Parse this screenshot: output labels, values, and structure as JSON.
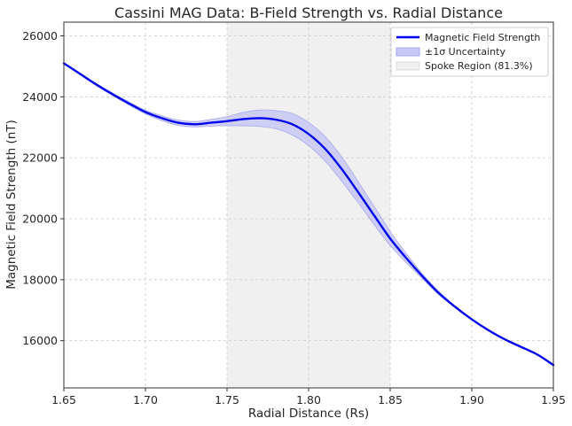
{
  "chart_data": {
    "type": "line",
    "title": "Cassini MAG Data: B-Field Strength vs. Radial Distance",
    "xlabel": "Radial Distance (Rs)",
    "ylabel": "Magnetic Field Strength (nT)",
    "xlim": [
      1.65,
      1.95
    ],
    "ylim": [
      14450,
      26450
    ],
    "x_ticks": [
      1.65,
      1.7,
      1.75,
      1.8,
      1.85,
      1.9,
      1.95
    ],
    "x_tick_labels": [
      "1.65",
      "1.70",
      "1.75",
      "1.80",
      "1.85",
      "1.90",
      "1.95"
    ],
    "y_ticks": [
      16000,
      18000,
      20000,
      22000,
      24000,
      26000
    ],
    "y_tick_labels": [
      "16000",
      "18000",
      "20000",
      "22000",
      "24000",
      "26000"
    ],
    "grid": true,
    "legend_position": "top-right",
    "legend": [
      {
        "label": "Magnetic Field Strength",
        "kind": "line"
      },
      {
        "label": "±1σ Uncertainty",
        "kind": "band"
      },
      {
        "label": "Spoke Region (81.3%)",
        "kind": "region"
      }
    ],
    "spoke_region": {
      "x_start": 1.75,
      "x_end": 1.85,
      "color": "#f0f0f0"
    },
    "colors": {
      "line": "#0000ee",
      "band_fill": "#c8c8f5",
      "band_edge": "#a8a8f0",
      "region": "#f0f0f0"
    },
    "series": [
      {
        "name": "Magnetic Field Strength",
        "x": [
          1.65,
          1.66,
          1.67,
          1.68,
          1.69,
          1.7,
          1.71,
          1.72,
          1.73,
          1.74,
          1.75,
          1.76,
          1.77,
          1.78,
          1.79,
          1.8,
          1.81,
          1.82,
          1.83,
          1.84,
          1.85,
          1.86,
          1.87,
          1.88,
          1.89,
          1.9,
          1.91,
          1.92,
          1.93,
          1.94,
          1.95
        ],
        "y": [
          25100,
          24750,
          24400,
          24080,
          23780,
          23500,
          23300,
          23150,
          23100,
          23150,
          23200,
          23270,
          23300,
          23250,
          23100,
          22780,
          22300,
          21650,
          20900,
          20120,
          19350,
          18700,
          18100,
          17550,
          17100,
          16700,
          16350,
          16050,
          15800,
          15550,
          15200
        ],
        "y_lower": [
          25100,
          24730,
          24370,
          24040,
          23730,
          23440,
          23220,
          23060,
          23010,
          23040,
          23050,
          23050,
          23030,
          22950,
          22750,
          22400,
          21900,
          21250,
          20550,
          19820,
          19120,
          18550,
          18020,
          17500,
          17080,
          16690,
          16345,
          16048,
          15800,
          15550,
          15200
        ],
        "y_upper": [
          25100,
          24770,
          24430,
          24120,
          23830,
          23560,
          23380,
          23240,
          23190,
          23260,
          23350,
          23490,
          23570,
          23550,
          23450,
          23160,
          22700,
          22050,
          21250,
          20420,
          19580,
          18850,
          18180,
          17600,
          17120,
          16710,
          16355,
          16052,
          15800,
          15550,
          15200
        ]
      }
    ]
  }
}
